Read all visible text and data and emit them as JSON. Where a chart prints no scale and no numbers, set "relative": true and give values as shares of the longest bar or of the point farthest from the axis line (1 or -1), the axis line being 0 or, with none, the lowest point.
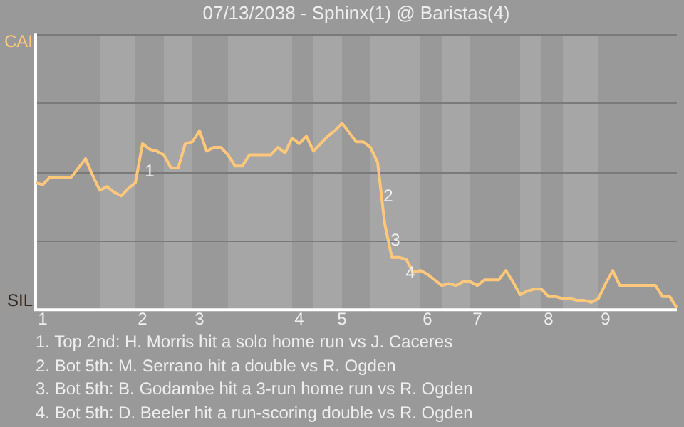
{
  "chart_data": {
    "type": "line",
    "title": "07/13/2038 - Sphinx(1) @ Baristas(4)",
    "relative": true,
    "categories": [
      null,
      "1",
      null,
      null,
      null,
      null,
      null,
      null,
      null,
      null,
      null,
      null,
      null,
      null,
      null,
      "2",
      null,
      null,
      null,
      null,
      null,
      null,
      null,
      "3",
      null,
      null,
      null,
      null,
      null,
      null,
      null,
      null,
      null,
      null,
      null,
      null,
      null,
      "4",
      null,
      null,
      null,
      null,
      null,
      "5",
      null,
      null,
      null,
      null,
      null,
      null,
      null,
      null,
      null,
      null,
      null,
      "6",
      null,
      null,
      null,
      null,
      null,
      null,
      "7",
      null,
      null,
      null,
      null,
      null,
      null,
      null,
      null,
      null,
      "8",
      null,
      null,
      null,
      null,
      null,
      null,
      null,
      "9",
      null,
      null,
      null,
      null,
      null,
      null,
      null,
      null,
      null,
      null
    ],
    "series": [
      {
        "color": "#ffc77a",
        "values": [
          0.68,
          0.67,
          0.71,
          0.71,
          0.71,
          0.71,
          0.76,
          0.81,
          0.72,
          0.64,
          0.66,
          0.63,
          0.61,
          0.65,
          0.68,
          0.89,
          0.86,
          0.85,
          0.83,
          0.76,
          0.76,
          0.89,
          0.9,
          0.96,
          0.85,
          0.87,
          0.87,
          0.83,
          0.77,
          0.77,
          0.83,
          0.83,
          0.83,
          0.83,
          0.87,
          0.84,
          0.92,
          0.89,
          0.93,
          0.85,
          0.89,
          0.93,
          0.96,
          1,
          0.95,
          0.9,
          0.9,
          0.87,
          0.79,
          0.46,
          0.28,
          0.28,
          0.27,
          0.2,
          0.21,
          0.19,
          0.16,
          0.13,
          0.14,
          0.13,
          0.15,
          0.15,
          0.13,
          0.16,
          0.16,
          0.16,
          0.21,
          0.15,
          0.08,
          0.1,
          0.11,
          0.11,
          0.07,
          0.07,
          0.06,
          0.06,
          0.05,
          0.05,
          0.04,
          0.06,
          0.14,
          0.21,
          0.13,
          0.13,
          0.13,
          0.13,
          0.13,
          0.13,
          0.07,
          0.07,
          0.01
        ]
      }
    ],
    "ref_lines": [
      {
        "axis": "y",
        "value": 0.37,
        "color": "#7a7a7a"
      },
      {
        "axis": "y",
        "value": 0.74,
        "color": "#7a7a7a"
      },
      {
        "axis": "y",
        "value": 1.11,
        "color": "#7a7a7a"
      },
      {
        "axis": "y",
        "value": 1.48,
        "color": "#7a7a7a"
      }
    ],
    "annotations": [
      "CAI",
      "SIL",
      "1",
      "2",
      "3",
      "4",
      "1. Top 2nd: H. Morris hit a solo home run vs J. Caceres",
      "2. Bot 5th: M. Serrano hit a double vs R. Ogden",
      "3. Bot 5th: B. Godambe hit a 3-run home run vs R. Ogden",
      "4. Bot 5th: D. Beeler hit a run-scoring double vs R. Ogden"
    ]
  }
}
